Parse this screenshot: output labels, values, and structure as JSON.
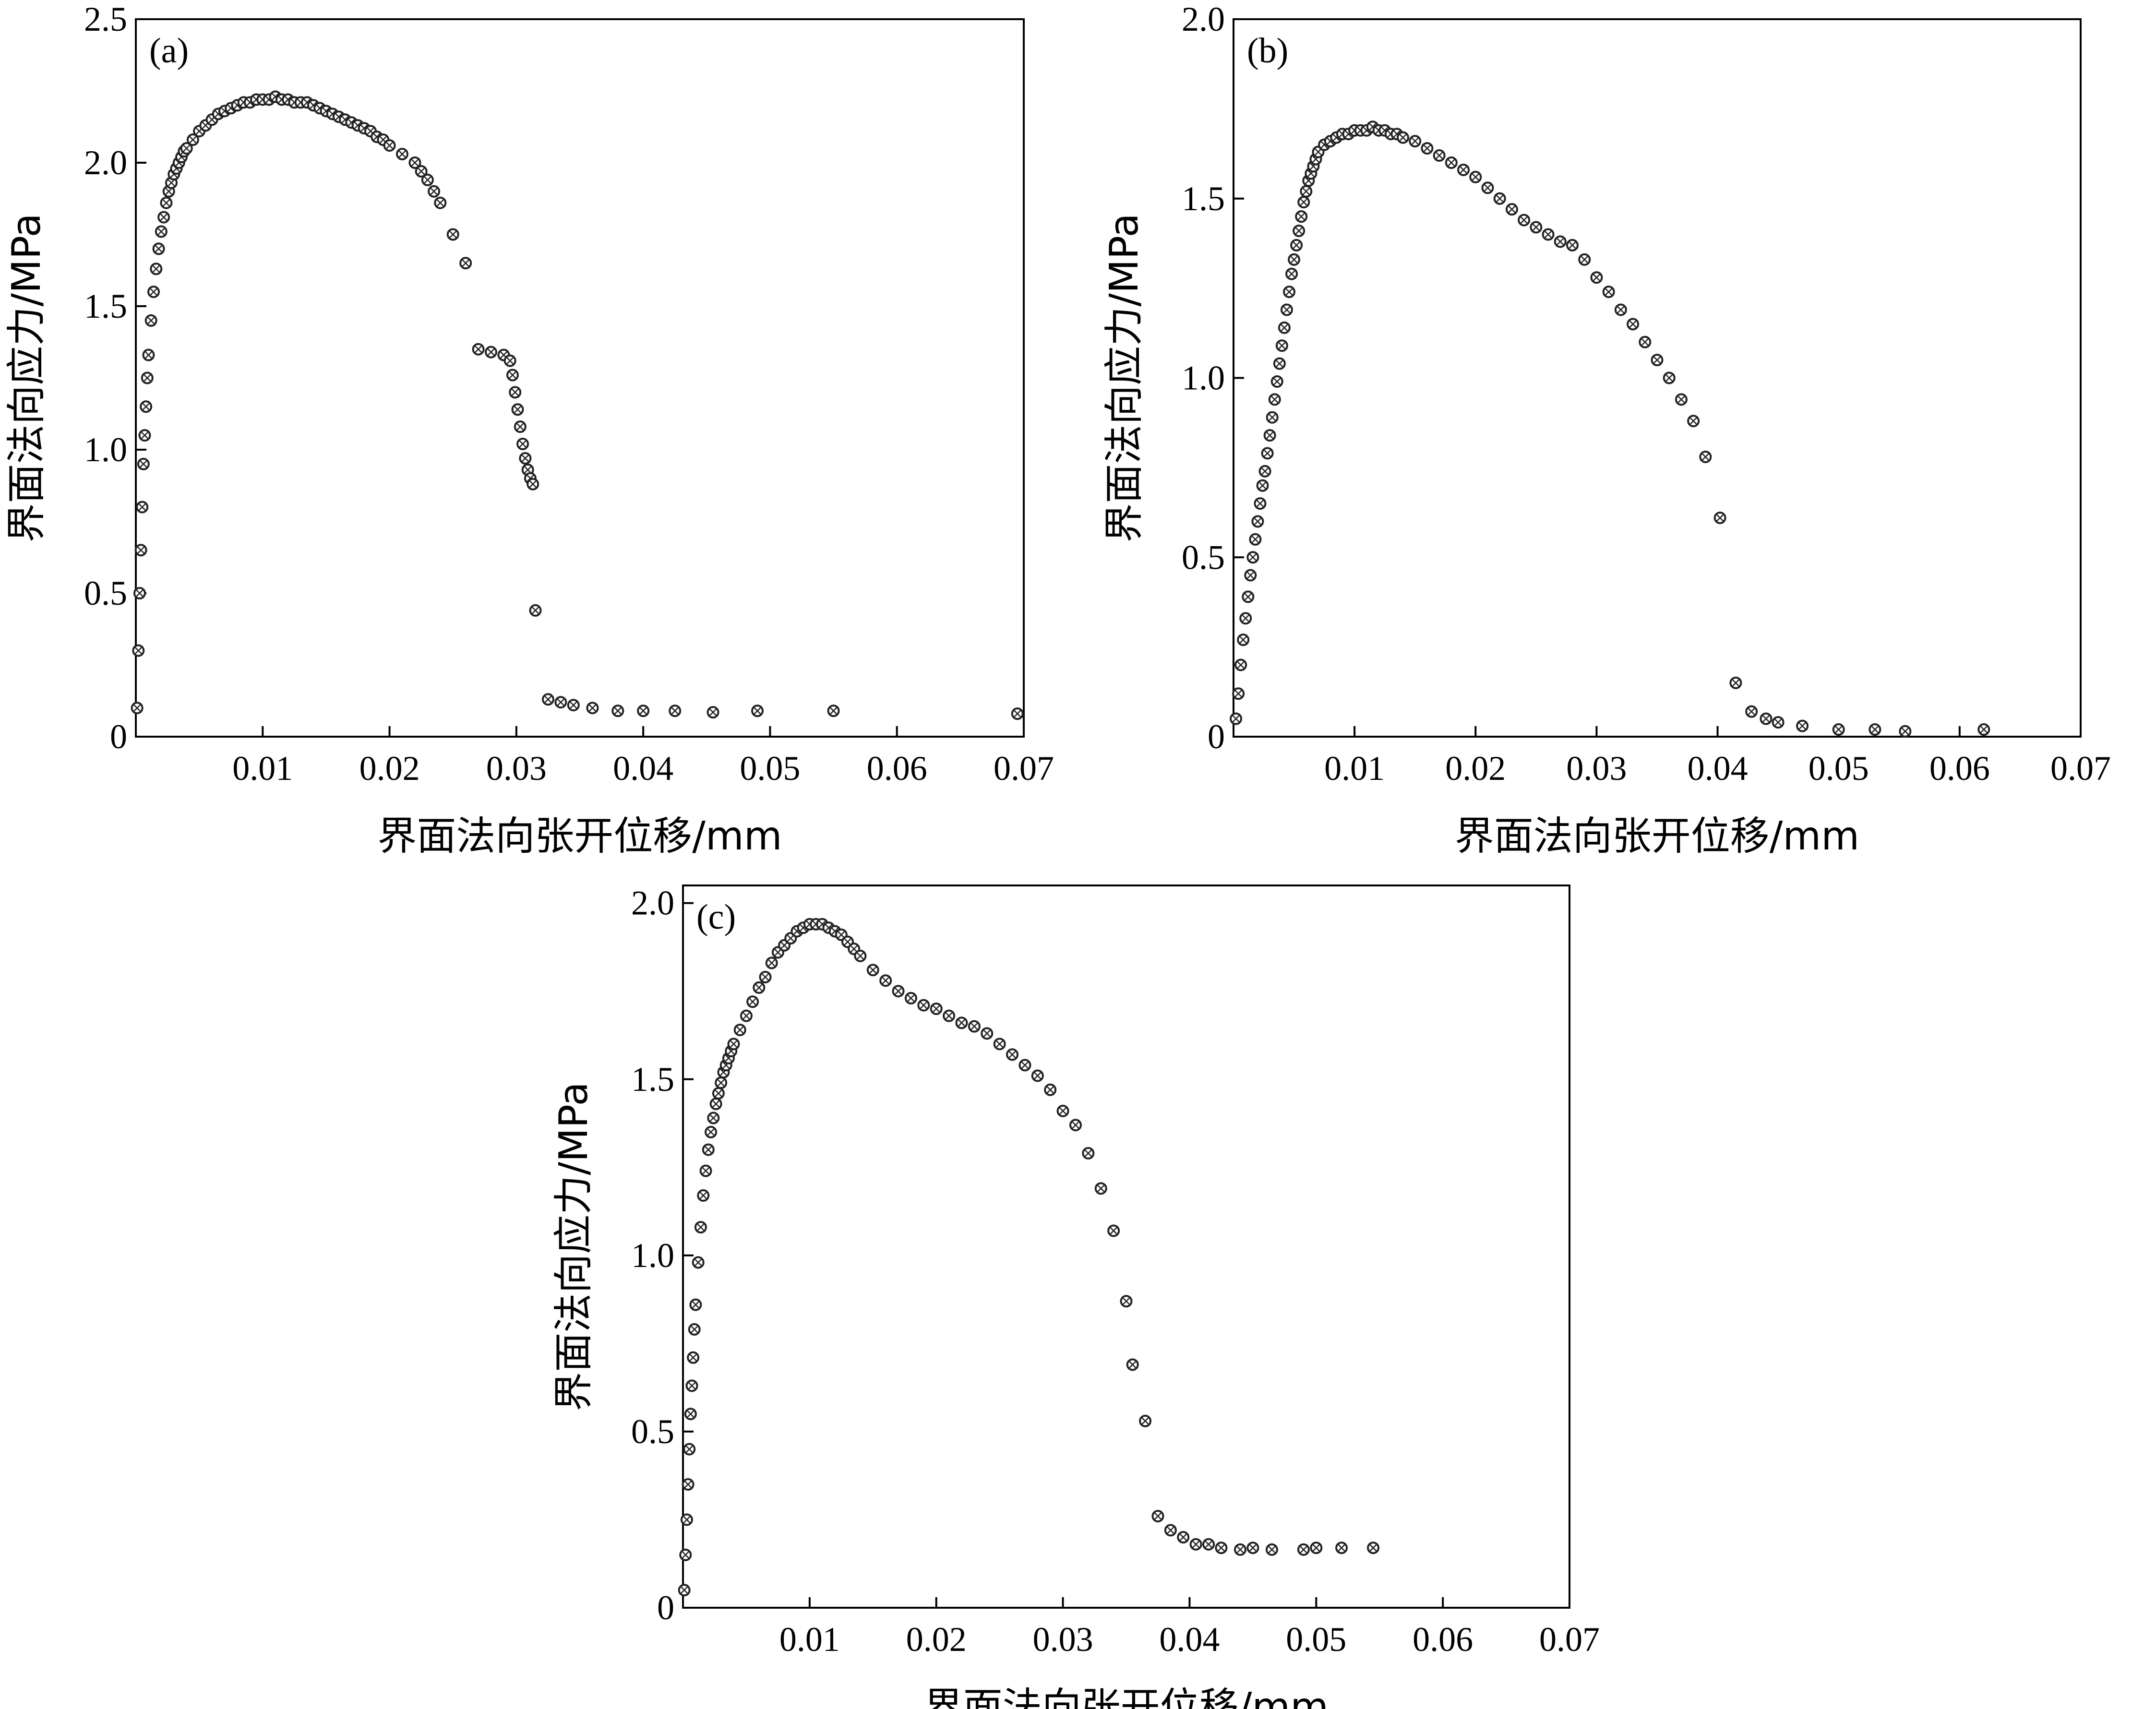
{
  "chart_data": [
    {
      "type": "scatter",
      "panel": "(a)",
      "xlabel": "界面法向张开位移/mm",
      "ylabel": "界面法向应力/MPa",
      "xlim": [
        0,
        0.07
      ],
      "ylim": [
        0,
        2.5
      ],
      "xticks": [
        0.01,
        0.02,
        0.03,
        0.04,
        0.05,
        0.06,
        0.07
      ],
      "xtick_labels": [
        "0.01",
        "0.02",
        "0.03",
        "0.04",
        "0.05",
        "0.06",
        "0.07"
      ],
      "yticks": [
        0,
        0.5,
        1.0,
        1.5,
        2.0,
        2.5
      ],
      "ytick_labels": [
        "0",
        "0.5",
        "1.0",
        "1.5",
        "2.0",
        "2.5"
      ],
      "series": [
        {
          "name": "(a)",
          "x": [
            0.0001,
            0.0002,
            0.0003,
            0.0004,
            0.0005,
            0.0006,
            0.0007,
            0.0008,
            0.0009,
            0.001,
            0.0012,
            0.0014,
            0.0016,
            0.0018,
            0.002,
            0.0022,
            0.0024,
            0.0026,
            0.0028,
            0.003,
            0.0032,
            0.0034,
            0.0036,
            0.0038,
            0.004,
            0.0045,
            0.005,
            0.0055,
            0.006,
            0.0065,
            0.007,
            0.0075,
            0.008,
            0.0085,
            0.009,
            0.0095,
            0.01,
            0.0105,
            0.011,
            0.0115,
            0.012,
            0.0125,
            0.013,
            0.0135,
            0.014,
            0.0145,
            0.015,
            0.0155,
            0.016,
            0.0165,
            0.017,
            0.0175,
            0.018,
            0.0185,
            0.019,
            0.0195,
            0.02,
            0.021,
            0.022,
            0.0225,
            0.023,
            0.0235,
            0.024,
            0.025,
            0.026,
            0.027,
            0.028,
            0.029,
            0.0295,
            0.0297,
            0.0299,
            0.0301,
            0.0303,
            0.0305,
            0.0307,
            0.0309,
            0.0311,
            0.0313,
            0.0315,
            0.0325,
            0.0335,
            0.0345,
            0.036,
            0.038,
            0.04,
            0.0425,
            0.0455,
            0.049,
            0.055,
            0.0695
          ],
          "y": [
            0.1,
            0.3,
            0.5,
            0.65,
            0.8,
            0.95,
            1.05,
            1.15,
            1.25,
            1.33,
            1.45,
            1.55,
            1.63,
            1.7,
            1.76,
            1.81,
            1.86,
            1.9,
            1.93,
            1.96,
            1.98,
            2.0,
            2.02,
            2.04,
            2.05,
            2.08,
            2.11,
            2.13,
            2.15,
            2.17,
            2.18,
            2.19,
            2.2,
            2.21,
            2.21,
            2.22,
            2.22,
            2.22,
            2.23,
            2.22,
            2.22,
            2.21,
            2.21,
            2.21,
            2.2,
            2.19,
            2.18,
            2.17,
            2.16,
            2.15,
            2.14,
            2.13,
            2.12,
            2.11,
            2.09,
            2.08,
            2.06,
            2.03,
            2.0,
            1.97,
            1.94,
            1.9,
            1.86,
            1.75,
            1.65,
            1.35,
            1.34,
            1.33,
            1.31,
            1.26,
            1.2,
            1.14,
            1.08,
            1.02,
            0.97,
            0.93,
            0.9,
            0.88,
            0.44,
            0.13,
            0.12,
            0.11,
            0.1,
            0.09,
            0.09,
            0.09,
            0.085,
            0.09,
            0.09,
            0.08
          ]
        }
      ]
    },
    {
      "type": "scatter",
      "panel": "(b)",
      "xlabel": "界面法向张开位移/mm",
      "ylabel": "界面法向应力/MPa",
      "xlim": [
        0,
        0.07
      ],
      "ylim": [
        0,
        2.0
      ],
      "xticks": [
        0.01,
        0.02,
        0.03,
        0.04,
        0.05,
        0.06,
        0.07
      ],
      "xtick_labels": [
        "0.01",
        "0.02",
        "0.03",
        "0.04",
        "0.05",
        "0.06",
        "0.07"
      ],
      "yticks": [
        0,
        0.5,
        1.0,
        1.5,
        2.0
      ],
      "ytick_labels": [
        "0",
        "0.5",
        "1.0",
        "1.5",
        "2.0"
      ],
      "series": [
        {
          "name": "(b)",
          "x": [
            0.0002,
            0.0004,
            0.0006,
            0.0008,
            0.001,
            0.0012,
            0.0014,
            0.0016,
            0.0018,
            0.002,
            0.0022,
            0.0024,
            0.0026,
            0.0028,
            0.003,
            0.0032,
            0.0034,
            0.0036,
            0.0038,
            0.004,
            0.0042,
            0.0044,
            0.0046,
            0.0048,
            0.005,
            0.0052,
            0.0054,
            0.0056,
            0.0058,
            0.006,
            0.0062,
            0.0064,
            0.0066,
            0.0068,
            0.007,
            0.0075,
            0.008,
            0.0085,
            0.009,
            0.0095,
            0.01,
            0.0105,
            0.011,
            0.0115,
            0.012,
            0.0125,
            0.013,
            0.0135,
            0.014,
            0.015,
            0.016,
            0.017,
            0.018,
            0.019,
            0.02,
            0.021,
            0.022,
            0.023,
            0.024,
            0.025,
            0.026,
            0.027,
            0.028,
            0.029,
            0.03,
            0.031,
            0.032,
            0.033,
            0.034,
            0.035,
            0.036,
            0.037,
            0.038,
            0.039,
            0.0402,
            0.0415,
            0.0428,
            0.044,
            0.045,
            0.047,
            0.05,
            0.053,
            0.0555,
            0.062
          ],
          "y": [
            0.05,
            0.12,
            0.2,
            0.27,
            0.33,
            0.39,
            0.45,
            0.5,
            0.55,
            0.6,
            0.65,
            0.7,
            0.74,
            0.79,
            0.84,
            0.89,
            0.94,
            0.99,
            1.04,
            1.09,
            1.14,
            1.19,
            1.24,
            1.29,
            1.33,
            1.37,
            1.41,
            1.45,
            1.49,
            1.52,
            1.55,
            1.57,
            1.59,
            1.61,
            1.63,
            1.65,
            1.66,
            1.67,
            1.68,
            1.68,
            1.69,
            1.69,
            1.69,
            1.7,
            1.69,
            1.69,
            1.68,
            1.68,
            1.67,
            1.66,
            1.64,
            1.62,
            1.6,
            1.58,
            1.56,
            1.53,
            1.5,
            1.47,
            1.44,
            1.42,
            1.4,
            1.38,
            1.37,
            1.33,
            1.28,
            1.24,
            1.19,
            1.15,
            1.1,
            1.05,
            1.0,
            0.94,
            0.88,
            0.78,
            0.61,
            0.15,
            0.07,
            0.05,
            0.04,
            0.03,
            0.02,
            0.02,
            0.015,
            0.02
          ]
        }
      ]
    },
    {
      "type": "scatter",
      "panel": "(c)",
      "xlabel": "界面法向张开位移/mm",
      "ylabel": "界面法向应力/MPa",
      "xlim": [
        0,
        0.07
      ],
      "ylim": [
        0,
        2.05
      ],
      "xticks": [
        0.01,
        0.02,
        0.03,
        0.04,
        0.05,
        0.06,
        0.07
      ],
      "xtick_labels": [
        "0.01",
        "0.02",
        "0.03",
        "0.04",
        "0.05",
        "0.06",
        "0.07"
      ],
      "yticks": [
        0,
        0.5,
        1.0,
        1.5,
        2.0
      ],
      "ytick_labels": [
        "0",
        "0.5",
        "1.0",
        "1.5",
        "2.0"
      ],
      "series": [
        {
          "name": "(c)",
          "x": [
            0.0001,
            0.0002,
            0.0003,
            0.0004,
            0.0005,
            0.0006,
            0.0007,
            0.0008,
            0.0009,
            0.001,
            0.0012,
            0.0014,
            0.0016,
            0.0018,
            0.002,
            0.0022,
            0.0024,
            0.0026,
            0.0028,
            0.003,
            0.0032,
            0.0034,
            0.0036,
            0.0038,
            0.004,
            0.0045,
            0.005,
            0.0055,
            0.006,
            0.0065,
            0.007,
            0.0075,
            0.008,
            0.0085,
            0.009,
            0.0095,
            0.01,
            0.0105,
            0.011,
            0.0115,
            0.012,
            0.0125,
            0.013,
            0.0135,
            0.014,
            0.015,
            0.016,
            0.017,
            0.018,
            0.019,
            0.02,
            0.021,
            0.022,
            0.023,
            0.024,
            0.025,
            0.026,
            0.027,
            0.028,
            0.029,
            0.03,
            0.031,
            0.032,
            0.033,
            0.034,
            0.035,
            0.0355,
            0.0365,
            0.0375,
            0.0385,
            0.0395,
            0.0405,
            0.0415,
            0.0425,
            0.044,
            0.045,
            0.0465,
            0.049,
            0.05,
            0.052,
            0.0545
          ],
          "y": [
            0.05,
            0.15,
            0.25,
            0.35,
            0.45,
            0.55,
            0.63,
            0.71,
            0.79,
            0.86,
            0.98,
            1.08,
            1.17,
            1.24,
            1.3,
            1.35,
            1.39,
            1.43,
            1.46,
            1.49,
            1.52,
            1.54,
            1.56,
            1.58,
            1.6,
            1.64,
            1.68,
            1.72,
            1.76,
            1.79,
            1.83,
            1.86,
            1.88,
            1.9,
            1.92,
            1.93,
            1.94,
            1.94,
            1.94,
            1.93,
            1.92,
            1.91,
            1.89,
            1.87,
            1.85,
            1.81,
            1.78,
            1.75,
            1.73,
            1.71,
            1.7,
            1.68,
            1.66,
            1.65,
            1.63,
            1.6,
            1.57,
            1.54,
            1.51,
            1.47,
            1.41,
            1.37,
            1.29,
            1.19,
            1.07,
            0.87,
            0.69,
            0.53,
            0.26,
            0.22,
            0.2,
            0.18,
            0.18,
            0.17,
            0.165,
            0.17,
            0.165,
            0.165,
            0.17,
            0.17,
            0.17
          ]
        }
      ]
    }
  ]
}
